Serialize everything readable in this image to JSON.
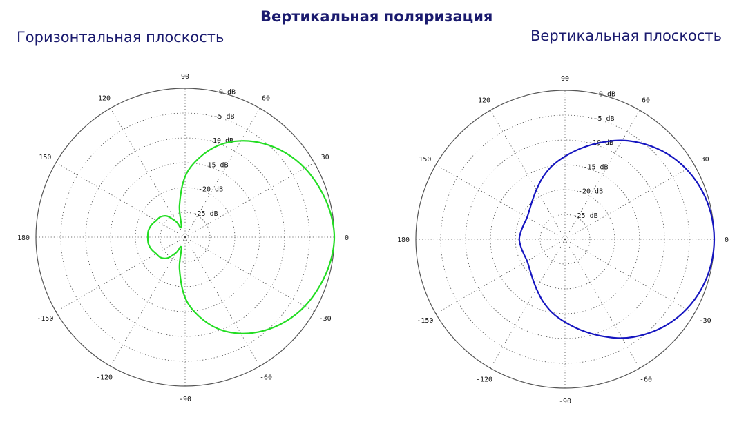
{
  "title": "Вертикальная поляризация",
  "chart_data": [
    {
      "type": "polar-line",
      "title": "Горизонтальная плоскость",
      "angle_unit": "degrees",
      "radial_unit": "dB",
      "rlim": [
        -30,
        0
      ],
      "radial_ticks": [
        0,
        -5,
        -10,
        -15,
        -20,
        -25
      ],
      "radial_tick_labels": [
        "0 dB",
        "-5 dB",
        "-10 dB",
        "-15 dB",
        "-20 dB",
        "-25 dB"
      ],
      "angle_ticks": [
        0,
        30,
        60,
        90,
        120,
        150,
        180,
        -150,
        -120,
        -90,
        -60,
        -30
      ],
      "angle_tick_labels": [
        "0",
        "30",
        "60",
        "90",
        "120",
        "150",
        "180",
        "-150",
        "-120",
        "-90",
        "-60",
        "-30"
      ],
      "grid": true,
      "series": [
        {
          "color": "#22dd22",
          "angles": [
            0,
            10,
            20,
            30,
            40,
            50,
            60,
            70,
            80,
            90,
            100,
            110,
            120,
            130,
            140,
            150,
            160,
            170,
            180,
            190,
            200,
            210,
            220,
            230,
            240,
            250,
            260,
            270,
            280,
            290,
            300,
            310,
            320,
            330,
            340,
            350,
            360
          ],
          "values": [
            0,
            -0.4,
            -1.2,
            -2.2,
            -3.6,
            -5.4,
            -7.6,
            -10.3,
            -13.8,
            -17.8,
            -23.5,
            -27.8,
            -26.4,
            -24.5,
            -23.6,
            -23.3,
            -22.8,
            -22.5,
            -22.5,
            -22.5,
            -22.8,
            -23.3,
            -23.6,
            -24.5,
            -26.4,
            -27.8,
            -23.5,
            -17.8,
            -13.8,
            -10.3,
            -7.6,
            -5.4,
            -3.6,
            -2.2,
            -1.2,
            -0.4,
            0
          ]
        }
      ]
    },
    {
      "type": "polar-line",
      "title": "Вертикальная плоскость",
      "angle_unit": "degrees",
      "radial_unit": "dB",
      "rlim": [
        -30,
        0
      ],
      "radial_ticks": [
        0,
        -5,
        -10,
        -15,
        -20,
        -25
      ],
      "radial_tick_labels": [
        "0 dB",
        "-5 dB",
        "-10 dB",
        "-15 dB",
        "-20 dB",
        "-25 dB"
      ],
      "angle_ticks": [
        0,
        30,
        60,
        90,
        120,
        150,
        180,
        -150,
        -120,
        -90,
        -60,
        -30
      ],
      "angle_tick_labels": [
        "0",
        "30",
        "60",
        "90",
        "120",
        "150",
        "180",
        "-150",
        "-120",
        "-90",
        "-60",
        "-30"
      ],
      "grid": true,
      "series": [
        {
          "color": "#1515c0",
          "angles": [
            0,
            10,
            20,
            30,
            40,
            50,
            60,
            70,
            80,
            90,
            100,
            110,
            120,
            130,
            140,
            150,
            160,
            170,
            180,
            190,
            200,
            210,
            220,
            230,
            240,
            250,
            260,
            270,
            280,
            290,
            300,
            310,
            320,
            330,
            340,
            350,
            360
          ],
          "values": [
            0,
            -0.2,
            -0.8,
            -1.8,
            -3.2,
            -5.0,
            -7.0,
            -9.3,
            -11.4,
            -13.3,
            -15.0,
            -16.8,
            -18.5,
            -19.8,
            -20.7,
            -21.2,
            -21.2,
            -21.0,
            -20.8,
            -21.0,
            -21.2,
            -21.2,
            -20.7,
            -19.8,
            -18.5,
            -16.8,
            -15.0,
            -13.3,
            -11.4,
            -9.3,
            -7.0,
            -5.0,
            -3.2,
            -1.8,
            -0.8,
            -0.2,
            0
          ]
        }
      ]
    }
  ]
}
